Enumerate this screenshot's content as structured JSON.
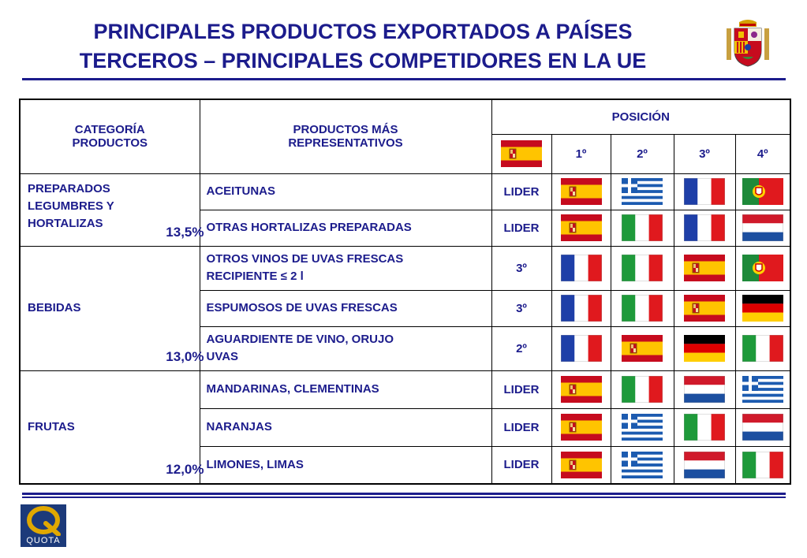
{
  "title": {
    "line1": "PRINCIPALES PRODUCTOS EXPORTADOS A PAÍSES",
    "line2": "TERCEROS – PRINCIPALES COMPETIDORES EN LA UE"
  },
  "table": {
    "headers": {
      "categoria_1": "CATEGORÍA",
      "categoria_2": "PRODUCTOS",
      "productos_1": "PRODUCTOS MÁS",
      "productos_2": "REPRESENTATIVOS",
      "posicion": "POSICIÓN",
      "pos1": "1º",
      "pos2": "2º",
      "pos3": "3º",
      "pos4": "4º",
      "spain_flag": "flag-spain"
    },
    "categories": [
      {
        "l1": "PREPARADOS",
        "l2": "LEGUMBRES Y",
        "l3": "HORTALIZAS",
        "pct": "13,5%"
      },
      {
        "l1": "BEBIDAS",
        "pct": "13,0%"
      },
      {
        "l1": "FRUTAS",
        "pct": "12,0%"
      }
    ],
    "rows": [
      {
        "product": "ACEITUNAS",
        "position": "LIDER",
        "flags": [
          "spain",
          "greece",
          "france",
          "portugal"
        ]
      },
      {
        "product": "OTRAS HORTALIZAS PREPARADAS",
        "position": "LIDER",
        "flags": [
          "spain",
          "italy",
          "france",
          "netherlands"
        ]
      },
      {
        "product_l1": "OTROS VINOS DE UVAS FRESCAS",
        "product_l2": "RECIPIENTE ≤ 2 l",
        "position": "3º",
        "flags": [
          "france",
          "italy",
          "spain",
          "portugal"
        ]
      },
      {
        "product": "ESPUMOSOS DE UVAS FRESCAS",
        "position": "3º",
        "flags": [
          "france",
          "italy",
          "spain",
          "germany"
        ]
      },
      {
        "product_l1": "AGUARDIENTE DE VINO, ORUJO",
        "product_l2": "UVAS",
        "position": "2º",
        "flags": [
          "france",
          "spain",
          "germany",
          "italy"
        ]
      },
      {
        "product": "MANDARINAS, CLEMENTINAS",
        "position": "LIDER",
        "flags": [
          "spain",
          "italy",
          "netherlands",
          "greece"
        ]
      },
      {
        "product": "NARANJAS",
        "position": "LIDER",
        "flags": [
          "spain",
          "greece",
          "italy",
          "netherlands"
        ]
      },
      {
        "product": "LIMONES, LIMAS",
        "position": "LIDER",
        "flags": [
          "spain",
          "greece",
          "netherlands",
          "italy"
        ]
      }
    ]
  },
  "logo": {
    "text": "QUOTA",
    "letter": "Q"
  },
  "colors": {
    "title": "#1c1c8c",
    "rule": "#1c1c8c",
    "logo_bg": "#1c3a7a",
    "logo_gold": "#e0a800"
  }
}
